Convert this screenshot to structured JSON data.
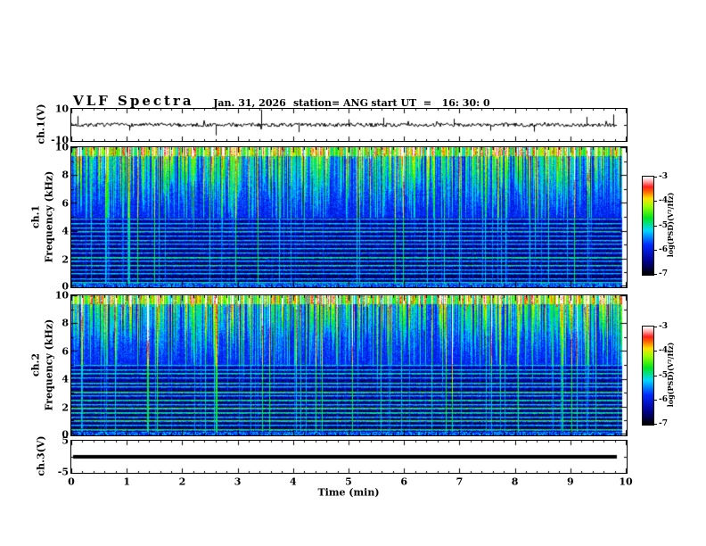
{
  "header": {
    "title": "VLF Spectra",
    "date": "Jan. 31, 2026",
    "station": "station= ANG",
    "start_ut": "start UT  =   16: 30: 0"
  },
  "axes": {
    "time": {
      "label": "Time (min)",
      "min": 0,
      "max": 10,
      "tick_labels": [
        "0",
        "1",
        "2",
        "3",
        "4",
        "5",
        "6",
        "7",
        "8",
        "9",
        "10"
      ],
      "minor_per_major": 5
    },
    "ch1": {
      "label": "ch.1(V)",
      "range": [
        -10,
        10
      ],
      "tick_labels": [
        "10",
        "-10"
      ]
    },
    "freq1": {
      "channel": "ch.1",
      "label": "Frequency (kHz)",
      "range": [
        0,
        10
      ],
      "tick_labels": [
        "10",
        "8",
        "6",
        "4",
        "2",
        "0"
      ]
    },
    "freq2": {
      "channel": "ch.2",
      "label": "Frequency (kHz)",
      "range": [
        0,
        10
      ],
      "tick_labels": [
        "10",
        "8",
        "6",
        "4",
        "2",
        "0"
      ]
    },
    "ch3": {
      "label": "ch.3(V)",
      "range": [
        -5,
        5
      ],
      "tick_labels": [
        "5",
        "-5"
      ]
    }
  },
  "colorbar": {
    "label": "log(PSD)(V²/Hz)",
    "tick_labels": [
      "-3",
      "-4",
      "-5",
      "-6",
      "-7"
    ],
    "range_log_psd": [
      -7,
      -3
    ],
    "gradient_stops": [
      {
        "t": 0.0,
        "color": "#000000"
      },
      {
        "t": 0.13,
        "color": "#00008c"
      },
      {
        "t": 0.3,
        "color": "#0028ff"
      },
      {
        "t": 0.45,
        "color": "#00d8ff"
      },
      {
        "t": 0.58,
        "color": "#00e620"
      },
      {
        "t": 0.7,
        "color": "#9cff00"
      },
      {
        "t": 0.78,
        "color": "#ffe000"
      },
      {
        "t": 0.85,
        "color": "#ff6400"
      },
      {
        "t": 0.9,
        "color": "#ff1e1e"
      },
      {
        "t": 0.96,
        "color": "#ffb4b4"
      },
      {
        "t": 1.0,
        "color": "#ffffff"
      }
    ]
  },
  "chart_data": [
    {
      "panel": "ch1_waveform",
      "type": "line",
      "ylabel": "ch.1(V)",
      "ylim": [
        -10,
        10
      ],
      "x_minutes": [
        0,
        9.82
      ],
      "baseline_V": 0,
      "noise_amplitude_V": 1.2,
      "seed": 7,
      "spikes": [
        {
          "t_min": 0.12,
          "V": 5.5
        },
        {
          "t_min": 1.05,
          "V": -3.5
        },
        {
          "t_min": 2.6,
          "V": -6.5
        },
        {
          "t_min": 3.43,
          "V": 9.5
        },
        {
          "t_min": 4.1,
          "V": -4.5
        },
        {
          "t_min": 5.0,
          "V": 3.5
        },
        {
          "t_min": 5.62,
          "V": 4.5
        },
        {
          "t_min": 6.9,
          "V": 3.8
        },
        {
          "t_min": 7.55,
          "V": -3.6
        },
        {
          "t_min": 8.35,
          "V": -4.2
        },
        {
          "t_min": 9.3,
          "V": 5.0
        },
        {
          "t_min": 9.78,
          "V": 6.5
        }
      ]
    },
    {
      "panel": "ch1_spectrogram",
      "type": "heatmap",
      "ylabel": "Frequency (kHz)",
      "ylim_kHz": [
        0,
        10
      ],
      "x_minutes": [
        0,
        9.82
      ],
      "z_log_psd_range": [
        -7,
        -3
      ],
      "seed": 11,
      "bright_top_band_min_kHz": 9.4,
      "dark_band_max_kHz": 4.8,
      "structure_note": "dense vertical sferic streaks 4-10 kHz; dark band 0-4.8 kHz crossed by horizontal harmonic lines",
      "harmonic_lines": [
        {
          "f_kHz": 0.35,
          "level": 0.5
        },
        {
          "f_kHz": 0.6,
          "level": 0.42
        },
        {
          "f_kHz": 0.95,
          "level": 0.45
        },
        {
          "f_kHz": 1.25,
          "level": 0.42
        },
        {
          "f_kHz": 1.55,
          "level": 0.5
        },
        {
          "f_kHz": 1.85,
          "level": 0.44
        },
        {
          "f_kHz": 2.1,
          "level": 0.56
        },
        {
          "f_kHz": 2.45,
          "level": 0.42
        },
        {
          "f_kHz": 2.75,
          "level": 0.46
        },
        {
          "f_kHz": 3.05,
          "level": 0.42
        },
        {
          "f_kHz": 3.35,
          "level": 0.44
        },
        {
          "f_kHz": 3.65,
          "level": 0.42
        },
        {
          "f_kHz": 3.95,
          "level": 0.5
        },
        {
          "f_kHz": 4.25,
          "level": 0.44
        },
        {
          "f_kHz": 4.55,
          "level": 0.46
        },
        {
          "f_kHz": 4.85,
          "level": 0.42
        }
      ]
    },
    {
      "panel": "ch2_spectrogram",
      "type": "heatmap",
      "ylabel": "Frequency (kHz)",
      "ylim_kHz": [
        0,
        10
      ],
      "x_minutes": [
        0,
        9.82
      ],
      "z_log_psd_range": [
        -7,
        -3
      ],
      "seed": 23,
      "bright_top_band_min_kHz": 9.4,
      "dark_band_max_kHz": 4.8,
      "structure_note": "similar to ch.1 with stronger green harmonic lines below 5 kHz",
      "harmonic_lines": [
        {
          "f_kHz": 0.4,
          "level": 0.55
        },
        {
          "f_kHz": 0.7,
          "level": 0.45
        },
        {
          "f_kHz": 1.0,
          "level": 0.58
        },
        {
          "f_kHz": 1.3,
          "level": 0.46
        },
        {
          "f_kHz": 1.6,
          "level": 0.56
        },
        {
          "f_kHz": 1.9,
          "level": 0.6
        },
        {
          "f_kHz": 2.2,
          "level": 0.46
        },
        {
          "f_kHz": 2.5,
          "level": 0.56
        },
        {
          "f_kHz": 2.8,
          "level": 0.44
        },
        {
          "f_kHz": 3.1,
          "level": 0.58
        },
        {
          "f_kHz": 3.45,
          "level": 0.46
        },
        {
          "f_kHz": 3.75,
          "level": 0.5
        },
        {
          "f_kHz": 4.1,
          "level": 0.44
        },
        {
          "f_kHz": 4.4,
          "level": 0.52
        },
        {
          "f_kHz": 4.7,
          "level": 0.46
        },
        {
          "f_kHz": 5.0,
          "level": 0.44
        }
      ]
    },
    {
      "panel": "ch3_waveform",
      "type": "line",
      "ylabel": "ch.3(V)",
      "ylim": [
        -5,
        5
      ],
      "x_minutes": [
        0,
        9.82
      ],
      "constant_V": 0,
      "line_halfwidth_V": 0.55
    }
  ]
}
